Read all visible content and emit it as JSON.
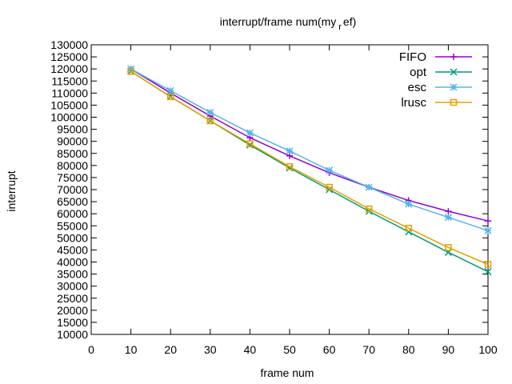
{
  "chart_data": {
    "type": "line",
    "title": "interrupt/frame num(my",
    "title_subscript": "r",
    "title_suffix": "ef)",
    "xlabel": "frame num",
    "ylabel": "interrupt",
    "xlim": [
      0,
      100
    ],
    "ylim": [
      10000,
      130000
    ],
    "xticks": [
      0,
      10,
      20,
      30,
      40,
      50,
      60,
      70,
      80,
      90,
      100
    ],
    "yticks": [
      10000,
      15000,
      20000,
      25000,
      30000,
      35000,
      40000,
      45000,
      50000,
      55000,
      60000,
      65000,
      70000,
      75000,
      80000,
      85000,
      90000,
      95000,
      100000,
      105000,
      110000,
      115000,
      120000,
      125000,
      130000
    ],
    "grid": false,
    "legend_position": "top-right",
    "x": [
      10,
      20,
      30,
      40,
      50,
      60,
      70,
      80,
      90,
      100
    ],
    "series": [
      {
        "name": "FIFO",
        "color": "#9400d3",
        "marker": "plus",
        "values": [
          120000,
          110000,
          100500,
          91500,
          84000,
          77000,
          71000,
          65500,
          61000,
          57000
        ]
      },
      {
        "name": "opt",
        "color": "#009e73",
        "marker": "cross",
        "values": [
          119000,
          108500,
          98500,
          88500,
          79000,
          70000,
          61000,
          52500,
          44000,
          36000
        ]
      },
      {
        "name": "esc",
        "color": "#56b4e9",
        "marker": "asterisk",
        "values": [
          120000,
          111000,
          102000,
          93500,
          86000,
          78000,
          71000,
          64000,
          58500,
          53000
        ]
      },
      {
        "name": "lrusc",
        "color": "#e69f00",
        "marker": "box",
        "values": [
          119000,
          108500,
          98500,
          89000,
          79500,
          71000,
          62000,
          54000,
          46000,
          39000
        ]
      }
    ]
  }
}
